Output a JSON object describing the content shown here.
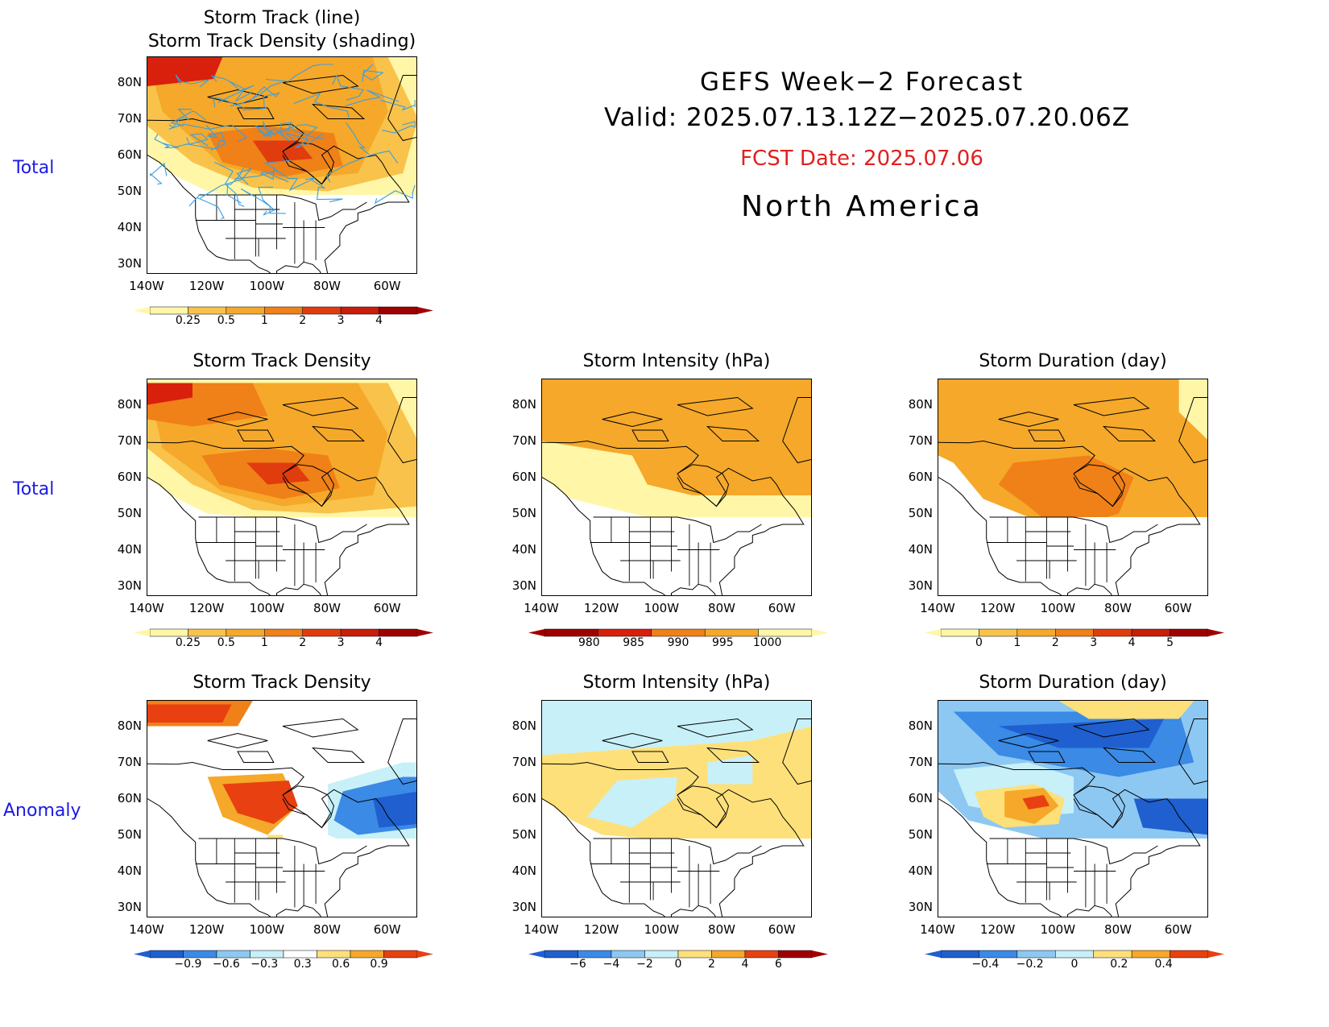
{
  "header": {
    "line1": "GEFS Week−2 Forecast",
    "line2": "Valid: 2025.07.13.12Z−2025.07.20.06Z",
    "fcst": "FCST Date: 2025.07.06",
    "region": "North America"
  },
  "row_labels": [
    "Total",
    "Total",
    "Anomaly"
  ],
  "axes": {
    "lat_ticks": [
      "80N",
      "70N",
      "60N",
      "50N",
      "40N",
      "30N"
    ],
    "lon_ticks": [
      "140W",
      "120W",
      "100W",
      "80W",
      "60W"
    ]
  },
  "panels": [
    {
      "id": "track",
      "title_line1": "Storm Track (line)",
      "title_line2": "Storm Track Density (shading)",
      "colorbar": {
        "labels": [
          "0.25",
          "0.5",
          "1",
          "2",
          "3",
          "4"
        ],
        "colors": [
          "#fff6a8",
          "#f9c24a",
          "#f5a82a",
          "#f08018",
          "#e03c0e",
          "#c81e0a",
          "#a00000"
        ]
      },
      "track_color": "#3a9fe0"
    },
    {
      "id": "density-total",
      "title": "Storm Track Density",
      "colorbar": {
        "labels": [
          "0.25",
          "0.5",
          "1",
          "2",
          "3",
          "4"
        ],
        "colors": [
          "#fff6a8",
          "#f9c24a",
          "#f5a82a",
          "#f08018",
          "#e03c0e",
          "#c81e0a",
          "#a00000"
        ]
      }
    },
    {
      "id": "intensity-total",
      "title": "Storm Intensity (hPa)",
      "colorbar": {
        "labels": [
          "980",
          "985",
          "990",
          "995",
          "1000"
        ],
        "colors": [
          "#a00000",
          "#d8200c",
          "#f08018",
          "#f5a82a",
          "#fff6a8"
        ]
      }
    },
    {
      "id": "duration-total",
      "title": "Storm Duration (day)",
      "colorbar": {
        "labels": [
          "0",
          "1",
          "2",
          "3",
          "4",
          "5"
        ],
        "colors": [
          "#fff6a8",
          "#f9c24a",
          "#f5a82a",
          "#f08018",
          "#e03c0e",
          "#c81e0a",
          "#a00000"
        ]
      }
    },
    {
      "id": "density-anom",
      "title": "Storm Track Density",
      "colorbar": {
        "labels": [
          "−0.9",
          "−0.6",
          "−0.3",
          "0.3",
          "0.6",
          "0.9"
        ],
        "colors": [
          "#1f5fcf",
          "#3a8ae6",
          "#8cc8f2",
          "#c8f0f8",
          "#ffffff",
          "#fde07a",
          "#f5a82a",
          "#e84010"
        ]
      }
    },
    {
      "id": "intensity-anom",
      "title": "Storm Intensity (hPa)",
      "colorbar": {
        "labels": [
          "−6",
          "−4",
          "−2",
          "0",
          "2",
          "4",
          "6"
        ],
        "colors": [
          "#1f5fcf",
          "#3a8ae6",
          "#8cc8f2",
          "#c8f0f8",
          "#fde07a",
          "#f5a82a",
          "#e84010",
          "#a00000"
        ]
      }
    },
    {
      "id": "duration-anom",
      "title": "Storm Duration (day)",
      "colorbar": {
        "labels": [
          "−0.4",
          "−0.2",
          "0",
          "0.2",
          "0.4"
        ],
        "colors": [
          "#1f5fcf",
          "#3a8ae6",
          "#8cc8f2",
          "#c8f0f8",
          "#fde07a",
          "#f5a82a",
          "#e84010"
        ]
      }
    }
  ]
}
